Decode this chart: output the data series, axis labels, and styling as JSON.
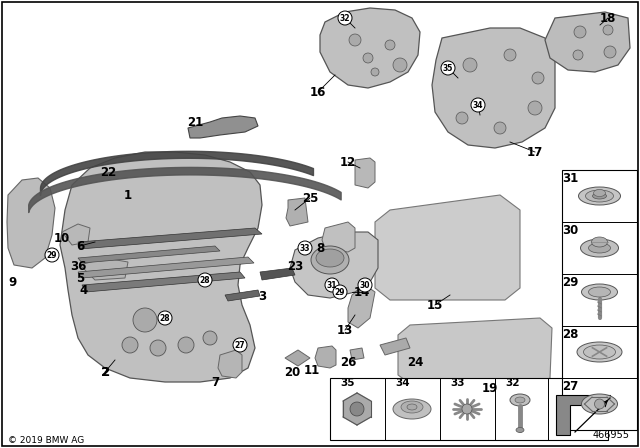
{
  "background_color": "#ffffff",
  "copyright": "© 2019 BMW AG",
  "diagram_number": "466955",
  "fig_width": 6.4,
  "fig_height": 4.48,
  "dpi": 100,
  "gray_light": "#c8c8c8",
  "gray_mid": "#aaaaaa",
  "gray_dark": "#888888",
  "gray_edge": "#666666"
}
